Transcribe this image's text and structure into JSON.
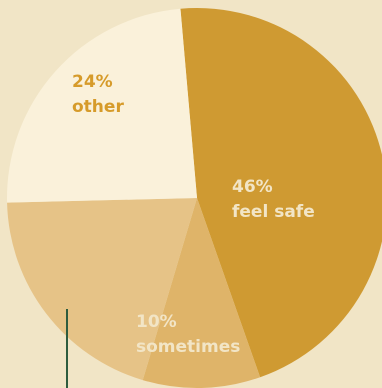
{
  "chart_data": {
    "type": "pie",
    "slices": [
      {
        "label": "feel safe",
        "value": 46,
        "value_label": "46%",
        "color": "#cf9a32",
        "label_color": "#f2e5c6"
      },
      {
        "label": "sometimes",
        "value": 10,
        "value_label": "10%",
        "color": "#dfb469",
        "label_color": "#f2e5c6"
      },
      {
        "label": "",
        "value": 20,
        "value_label": "",
        "color": "#e6c387",
        "label_color": "#f2e5c6"
      },
      {
        "label": "other",
        "value": 24,
        "value_label": "24%",
        "color": "#faf1da",
        "label_color": "#d69b2a"
      }
    ],
    "background": "#f1e5c6",
    "leader_line_color": "#2e5c3e"
  }
}
